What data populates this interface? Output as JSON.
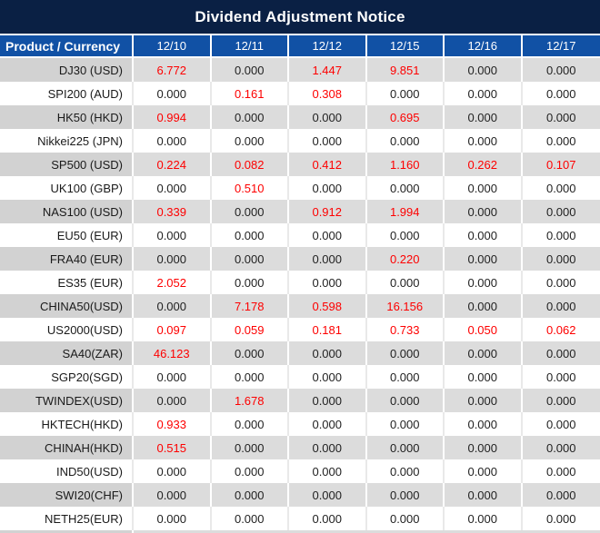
{
  "title": "Dividend Adjustment Notice",
  "columns": {
    "product": "Product / Currency",
    "dates": [
      "12/10",
      "12/11",
      "12/12",
      "12/15",
      "12/16",
      "12/17"
    ]
  },
  "rows": [
    {
      "product": "DJ30 (USD)",
      "values": [
        "6.772",
        "0.000",
        "1.447",
        "9.851",
        "0.000",
        "0.000"
      ]
    },
    {
      "product": "SPI200 (AUD)",
      "values": [
        "0.000",
        "0.161",
        "0.308",
        "0.000",
        "0.000",
        "0.000"
      ]
    },
    {
      "product": "HK50 (HKD)",
      "values": [
        "0.994",
        "0.000",
        "0.000",
        "0.695",
        "0.000",
        "0.000"
      ]
    },
    {
      "product": "Nikkei225 (JPN)",
      "values": [
        "0.000",
        "0.000",
        "0.000",
        "0.000",
        "0.000",
        "0.000"
      ]
    },
    {
      "product": "SP500 (USD)",
      "values": [
        "0.224",
        "0.082",
        "0.412",
        "1.160",
        "0.262",
        "0.107"
      ]
    },
    {
      "product": "UK100 (GBP)",
      "values": [
        "0.000",
        "0.510",
        "0.000",
        "0.000",
        "0.000",
        "0.000"
      ]
    },
    {
      "product": "NAS100 (USD)",
      "values": [
        "0.339",
        "0.000",
        "0.912",
        "1.994",
        "0.000",
        "0.000"
      ]
    },
    {
      "product": "EU50 (EUR)",
      "values": [
        "0.000",
        "0.000",
        "0.000",
        "0.000",
        "0.000",
        "0.000"
      ]
    },
    {
      "product": "FRA40 (EUR)",
      "values": [
        "0.000",
        "0.000",
        "0.000",
        "0.220",
        "0.000",
        "0.000"
      ]
    },
    {
      "product": "ES35 (EUR)",
      "values": [
        "2.052",
        "0.000",
        "0.000",
        "0.000",
        "0.000",
        "0.000"
      ]
    },
    {
      "product": "CHINA50(USD)",
      "values": [
        "0.000",
        "7.178",
        "0.598",
        "16.156",
        "0.000",
        "0.000"
      ]
    },
    {
      "product": "US2000(USD)",
      "values": [
        "0.097",
        "0.059",
        "0.181",
        "0.733",
        "0.050",
        "0.062"
      ]
    },
    {
      "product": "SA40(ZAR)",
      "values": [
        "46.123",
        "0.000",
        "0.000",
        "0.000",
        "0.000",
        "0.000"
      ]
    },
    {
      "product": "SGP20(SGD)",
      "values": [
        "0.000",
        "0.000",
        "0.000",
        "0.000",
        "0.000",
        "0.000"
      ]
    },
    {
      "product": "TWINDEX(USD)",
      "values": [
        "0.000",
        "1.678",
        "0.000",
        "0.000",
        "0.000",
        "0.000"
      ]
    },
    {
      "product": "HKTECH(HKD)",
      "values": [
        "0.933",
        "0.000",
        "0.000",
        "0.000",
        "0.000",
        "0.000"
      ]
    },
    {
      "product": "CHINAH(HKD)",
      "values": [
        "0.515",
        "0.000",
        "0.000",
        "0.000",
        "0.000",
        "0.000"
      ]
    },
    {
      "product": "IND50(USD)",
      "values": [
        "0.000",
        "0.000",
        "0.000",
        "0.000",
        "0.000",
        "0.000"
      ]
    },
    {
      "product": "SWI20(CHF)",
      "values": [
        "0.000",
        "0.000",
        "0.000",
        "0.000",
        "0.000",
        "0.000"
      ]
    },
    {
      "product": "NETH25(EUR)",
      "values": [
        "0.000",
        "0.000",
        "0.000",
        "0.000",
        "0.000",
        "0.000"
      ]
    }
  ],
  "colors": {
    "title_bg": "#0a2044",
    "header_bg": "#1151a5",
    "header_text": "#ffffff",
    "row_gray_product": "#d2d2d2",
    "row_gray": "#dcdcdc",
    "row_white": "#ffffff",
    "grid_white": "#ffffff",
    "grid_light": "#e9e9e9",
    "zero_text": "#222222",
    "nonzero_text": "#fe0000",
    "product_text": "#1a1a1a"
  }
}
